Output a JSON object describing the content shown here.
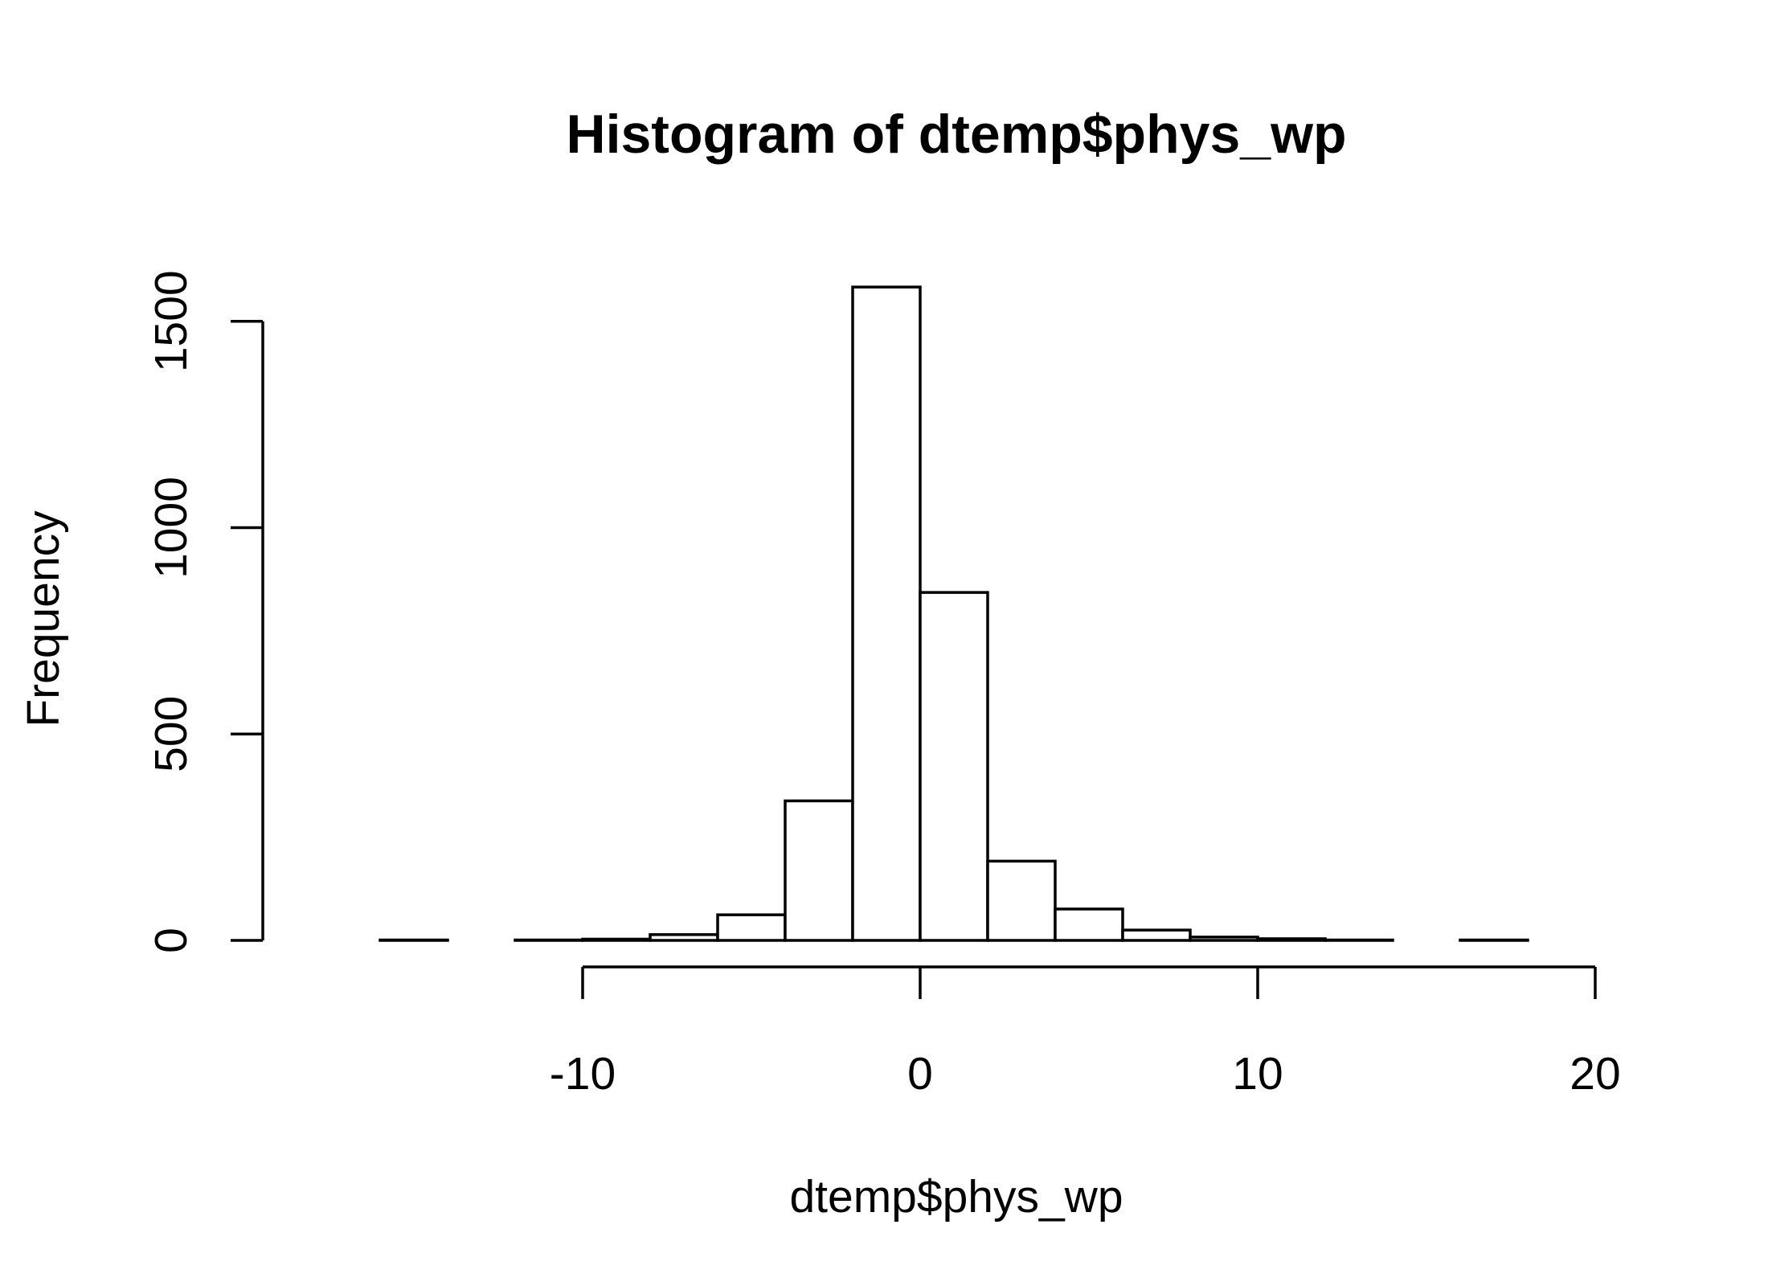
{
  "chart_data": {
    "type": "bar",
    "title": "Histogram of dtemp$phys_wp",
    "xlabel": "dtemp$phys_wp",
    "ylabel": "Frequency",
    "xlim": [
      -18,
      20
    ],
    "ylim": [
      0,
      1600
    ],
    "x_ticks": [
      -10,
      0,
      10,
      20
    ],
    "y_ticks": [
      0,
      500,
      1000,
      1500
    ],
    "bin_edges": [
      -18,
      -16,
      -14,
      -12,
      -10,
      -8,
      -6,
      -4,
      -2,
      0,
      2,
      4,
      6,
      8,
      10,
      12,
      14,
      16,
      18,
      20
    ],
    "values": [
      0,
      1,
      0,
      1,
      3,
      14,
      62,
      338,
      1583,
      843,
      192,
      76,
      25,
      8,
      4,
      1,
      0,
      1,
      0
    ],
    "bar_fill": "#ffffff",
    "bar_stroke": "#000000",
    "grid": false
  }
}
